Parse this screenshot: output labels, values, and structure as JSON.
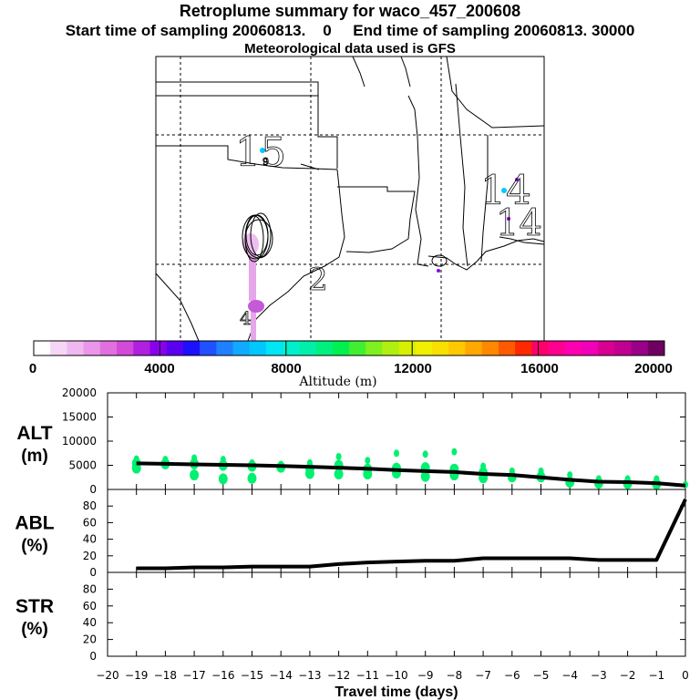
{
  "header": {
    "title": "Retroplume summary for waco_457_200608",
    "subtitle": "Start time of sampling 20060813.    0     End time of sampling 20060813. 30000",
    "met_line": "Meteorological data used is GFS"
  },
  "map": {
    "day_labels": [
      "15",
      "14",
      "14",
      "2",
      "4"
    ],
    "hour_label": "9"
  },
  "colorbar": {
    "tick_labels": [
      "0",
      "4000",
      "8000",
      "12000",
      "16000",
      "20000"
    ],
    "axis_label": "Altitude (m)",
    "colors": [
      "#ffffff",
      "#f6d6f6",
      "#f0b8f0",
      "#ea96ea",
      "#e070e0",
      "#d24ad8",
      "#b020e0",
      "#8a00ee",
      "#5a00f0",
      "#1c10ff",
      "#2050ff",
      "#1e80ff",
      "#10aaff",
      "#00c8ff",
      "#00e6f6",
      "#00f0cc",
      "#00f0aa",
      "#00f080",
      "#00f050",
      "#40f030",
      "#80f020",
      "#b0f010",
      "#d8f000",
      "#f0f000",
      "#f8e000",
      "#ffc800",
      "#ffa800",
      "#ff8800",
      "#ff5a00",
      "#ff2800",
      "#ff006a",
      "#ff0090",
      "#ff00b0",
      "#f000b8",
      "#d80090",
      "#c00090",
      "#9a0088",
      "#700060"
    ]
  },
  "chart_data": [
    {
      "type": "line",
      "panel": "ALT",
      "ylabel_top": "ALT",
      "ylabel_bottom": "(m)",
      "ylim": [
        0,
        20000
      ],
      "yticks": [
        0,
        5000,
        10000,
        15000,
        20000
      ],
      "xlim": [
        -20,
        0
      ],
      "x": [
        -19,
        -18,
        -17,
        -16,
        -15,
        -14,
        -13,
        -12,
        -11,
        -10,
        -9,
        -8,
        -7,
        -6,
        -5,
        -4,
        -3,
        -2,
        -1,
        0
      ],
      "values": [
        5400,
        5300,
        5200,
        5100,
        5000,
        4850,
        4700,
        4500,
        4300,
        4000,
        3800,
        3600,
        3200,
        3000,
        2500,
        2000,
        1600,
        1500,
        1300,
        800
      ],
      "scatter": [
        {
          "x": -19,
          "y": [
            6300,
            5400,
            4400
          ]
        },
        {
          "x": -18,
          "y": [
            6200,
            5300
          ]
        },
        {
          "x": -17,
          "y": [
            6500,
            5300,
            3000
          ]
        },
        {
          "x": -16,
          "y": [
            6200,
            5000,
            2200
          ]
        },
        {
          "x": -15,
          "y": [
            5500,
            4800,
            2300
          ]
        },
        {
          "x": -14,
          "y": [
            5200,
            4600
          ]
        },
        {
          "x": -13,
          "y": [
            5500,
            4300,
            3300
          ]
        },
        {
          "x": -12,
          "y": [
            6800,
            5000,
            3200
          ]
        },
        {
          "x": -11,
          "y": [
            6000,
            4200,
            3200
          ]
        },
        {
          "x": -10,
          "y": [
            7500,
            4400,
            3400
          ]
        },
        {
          "x": -9,
          "y": [
            7300,
            4500,
            2700
          ]
        },
        {
          "x": -8,
          "y": [
            7800,
            4200,
            3000
          ]
        },
        {
          "x": -7,
          "y": [
            4800,
            3500,
            2400
          ]
        },
        {
          "x": -6,
          "y": [
            3800,
            2600
          ]
        },
        {
          "x": -5,
          "y": [
            3800,
            2600
          ]
        },
        {
          "x": -4,
          "y": [
            3000,
            1500
          ]
        },
        {
          "x": -3,
          "y": [
            2200,
            1300
          ]
        },
        {
          "x": -2,
          "y": [
            2200,
            1200
          ]
        },
        {
          "x": -1,
          "y": [
            2200,
            1100
          ]
        },
        {
          "x": 0,
          "y": [
            1000
          ]
        }
      ]
    },
    {
      "type": "line",
      "panel": "ABL",
      "ylabel_top": "ABL",
      "ylabel_bottom": "(%)",
      "ylim": [
        0,
        100
      ],
      "yticks": [
        0,
        20,
        40,
        60,
        80
      ],
      "xlim": [
        -20,
        0
      ],
      "x": [
        -19,
        -18,
        -17,
        -16,
        -15,
        -14,
        -13,
        -12,
        -11,
        -10,
        -9,
        -8,
        -7,
        -6,
        -5,
        -4,
        -3,
        -2,
        -1,
        0
      ],
      "values": [
        5,
        5,
        6,
        6,
        7,
        7,
        7,
        10,
        12,
        13,
        14,
        14,
        17,
        17,
        17,
        17,
        15,
        15,
        15,
        88
      ]
    },
    {
      "type": "line",
      "panel": "STR",
      "ylabel_top": "STR",
      "ylabel_bottom": "(%)",
      "ylim": [
        0,
        100
      ],
      "yticks": [
        0,
        20,
        40,
        60,
        80
      ],
      "xlim": [
        -20,
        0
      ],
      "x": [],
      "values": [],
      "xlabel": "Travel time (days)",
      "xticks": [
        -20,
        -19,
        -18,
        -17,
        -16,
        -15,
        -14,
        -13,
        -12,
        -11,
        -10,
        -9,
        -8,
        -7,
        -6,
        -5,
        -4,
        -3,
        -2,
        -1,
        0
      ]
    }
  ]
}
